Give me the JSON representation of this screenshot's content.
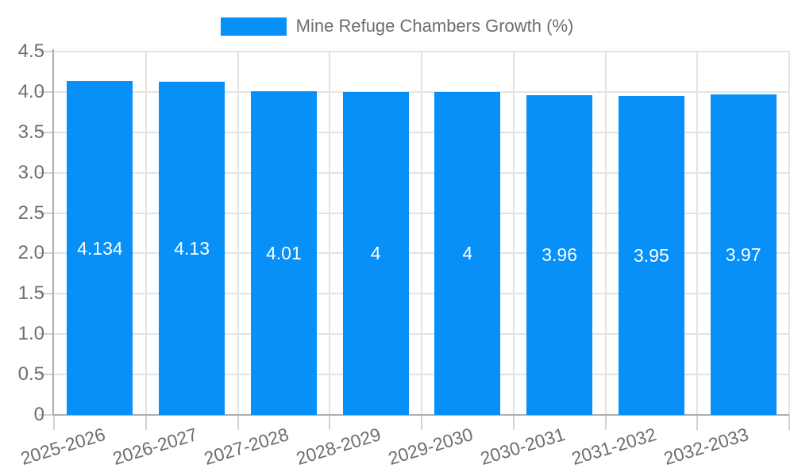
{
  "chart_data": {
    "type": "bar",
    "series_name": "Mine Refuge Chambers Growth (%)",
    "categories": [
      "2025-2026",
      "2026-2027",
      "2027-2028",
      "2028-2029",
      "2029-2030",
      "2030-2031",
      "2031-2032",
      "2032-2033"
    ],
    "values": [
      4.134,
      4.13,
      4.01,
      4,
      4,
      3.96,
      3.95,
      3.97
    ],
    "value_labels": [
      "4.134",
      "4.13",
      "4.01",
      "4",
      "4",
      "3.96",
      "3.95",
      "3.97"
    ],
    "title": "",
    "xlabel": "",
    "ylabel": "",
    "ylim": [
      0,
      4.5
    ],
    "ytick_step": 0.5,
    "ytick_labels": [
      "0",
      "0.5",
      "1.0",
      "1.5",
      "2.0",
      "2.5",
      "3.0",
      "3.5",
      "4.0",
      "4.5"
    ],
    "grid": true,
    "legend_position": "top-center",
    "x_label_rotation_deg": -17,
    "colors": {
      "bar": "#0690F8",
      "grid": "#e3e3e3",
      "axis": "#adadad",
      "tick_mark": "#d2d2d2",
      "label_text": "#6e6e6e",
      "value_label_text": "#ffffff",
      "background": "#ffffff"
    }
  }
}
